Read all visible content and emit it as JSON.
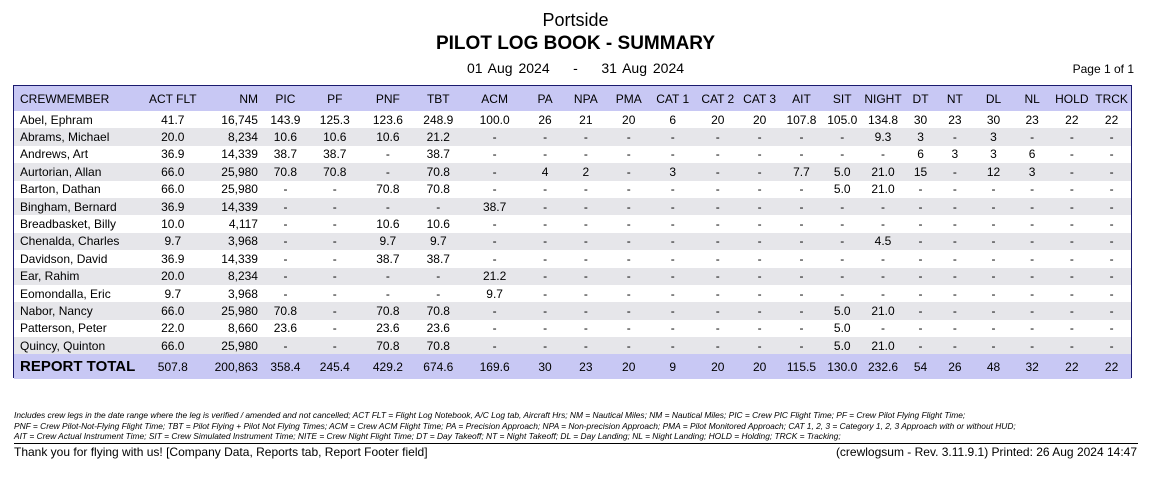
{
  "header": {
    "company": "Portside",
    "title": "PILOT LOG BOOK - SUMMARY",
    "date_from": "01 Aug 2024",
    "separator": "-",
    "date_to": "31 Aug 2024",
    "page": "Page 1 of 1"
  },
  "columns": [
    "CREWMEMBER",
    "ACT FLT",
    "NM",
    "PIC",
    "PF",
    "PNF",
    "TBT",
    "ACM",
    "PA",
    "NPA",
    "PMA",
    "CAT 1",
    "CAT 2",
    "CAT 3",
    "AIT",
    "SIT",
    "NIGHT",
    "DT",
    "NT",
    "DL",
    "NL",
    "HOLD",
    "TRCK"
  ],
  "rows": [
    [
      "Abel, Ephram",
      "41.7",
      "16,745",
      "143.9",
      "125.3",
      "123.6",
      "248.9",
      "100.0",
      "26",
      "21",
      "20",
      "6",
      "20",
      "20",
      "107.8",
      "105.0",
      "134.8",
      "30",
      "23",
      "30",
      "23",
      "22",
      "22"
    ],
    [
      "Abrams, Michael",
      "20.0",
      "8,234",
      "10.6",
      "10.6",
      "10.6",
      "21.2",
      "-",
      "-",
      "-",
      "-",
      "-",
      "-",
      "-",
      "-",
      "-",
      "9.3",
      "3",
      "-",
      "3",
      "-",
      "-",
      "-"
    ],
    [
      "Andrews, Art",
      "36.9",
      "14,339",
      "38.7",
      "38.7",
      "-",
      "38.7",
      "-",
      "-",
      "-",
      "-",
      "-",
      "-",
      "-",
      "-",
      "-",
      "-",
      "6",
      "3",
      "3",
      "6",
      "-",
      "-"
    ],
    [
      "Aurtorian, Allan",
      "66.0",
      "25,980",
      "70.8",
      "70.8",
      "-",
      "70.8",
      "-",
      "4",
      "2",
      "-",
      "3",
      "-",
      "-",
      "7.7",
      "5.0",
      "21.0",
      "15",
      "-",
      "12",
      "3",
      "-",
      "-"
    ],
    [
      "Barton, Dathan",
      "66.0",
      "25,980",
      "-",
      "-",
      "70.8",
      "70.8",
      "-",
      "-",
      "-",
      "-",
      "-",
      "-",
      "-",
      "-",
      "5.0",
      "21.0",
      "-",
      "-",
      "-",
      "-",
      "-",
      "-"
    ],
    [
      "Bingham, Bernard",
      "36.9",
      "14,339",
      "-",
      "-",
      "-",
      "-",
      "38.7",
      "-",
      "-",
      "-",
      "-",
      "-",
      "-",
      "-",
      "-",
      "-",
      "-",
      "-",
      "-",
      "-",
      "-",
      "-"
    ],
    [
      "Breadbasket, Billy",
      "10.0",
      "4,117",
      "-",
      "-",
      "10.6",
      "10.6",
      "-",
      "-",
      "-",
      "-",
      "-",
      "-",
      "-",
      "-",
      "-",
      "-",
      "-",
      "-",
      "-",
      "-",
      "-",
      "-"
    ],
    [
      "Chenalda, Charles",
      "9.7",
      "3,968",
      "-",
      "-",
      "9.7",
      "9.7",
      "-",
      "-",
      "-",
      "-",
      "-",
      "-",
      "-",
      "-",
      "-",
      "4.5",
      "-",
      "-",
      "-",
      "-",
      "-",
      "-"
    ],
    [
      "Davidson, David",
      "36.9",
      "14,339",
      "-",
      "-",
      "38.7",
      "38.7",
      "-",
      "-",
      "-",
      "-",
      "-",
      "-",
      "-",
      "-",
      "-",
      "-",
      "-",
      "-",
      "-",
      "-",
      "-",
      "-"
    ],
    [
      "Ear, Rahim",
      "20.0",
      "8,234",
      "-",
      "-",
      "-",
      "-",
      "21.2",
      "-",
      "-",
      "-",
      "-",
      "-",
      "-",
      "-",
      "-",
      "-",
      "-",
      "-",
      "-",
      "-",
      "-",
      "-"
    ],
    [
      "Eomondalla, Eric",
      "9.7",
      "3,968",
      "-",
      "-",
      "-",
      "-",
      "9.7",
      "-",
      "-",
      "-",
      "-",
      "-",
      "-",
      "-",
      "-",
      "-",
      "-",
      "-",
      "-",
      "-",
      "-",
      "-"
    ],
    [
      "Nabor, Nancy",
      "66.0",
      "25,980",
      "70.8",
      "-",
      "70.8",
      "70.8",
      "-",
      "-",
      "-",
      "-",
      "-",
      "-",
      "-",
      "-",
      "5.0",
      "21.0",
      "-",
      "-",
      "-",
      "-",
      "-",
      "-"
    ],
    [
      "Patterson, Peter",
      "22.0",
      "8,660",
      "23.6",
      "-",
      "23.6",
      "23.6",
      "-",
      "-",
      "-",
      "-",
      "-",
      "-",
      "-",
      "-",
      "5.0",
      "-",
      "-",
      "-",
      "-",
      "-",
      "-",
      "-"
    ],
    [
      "Quincy, Quinton",
      "66.0",
      "25,980",
      "-",
      "-",
      "70.8",
      "70.8",
      "-",
      "-",
      "-",
      "-",
      "-",
      "-",
      "-",
      "-",
      "5.0",
      "21.0",
      "-",
      "-",
      "-",
      "-",
      "-",
      "-"
    ]
  ],
  "total": [
    "REPORT TOTAL",
    "507.8",
    "200,863",
    "358.4",
    "245.4",
    "429.2",
    "674.6",
    "169.6",
    "30",
    "23",
    "20",
    "9",
    "20",
    "20",
    "115.5",
    "130.0",
    "232.6",
    "54",
    "26",
    "48",
    "32",
    "22",
    "22"
  ],
  "notes": [
    "Includes crew legs in the date range where the leg is verified / amended and not cancelled;  ACT FLT = Flight Log Notebook, A/C Log tab, Aircraft Hrs;  NM = Nautical Miles; NM = Nautical Miles;  PIC = Crew PIC Flight Time;  PF = Crew Pilot Flying Flight Time;",
    "PNF = Crew Pilot-Not-Flying Flight Time;  TBT = Pilot Flying + Pilot Not Flying Times;  ACM = Crew ACM Flight Time;  PA = Precision Approach;  NPA = Non-precision Approach;  PMA = Pilot Monitored Approach;  CAT 1, 2, 3 = Category 1, 2, 3 Approach with or without HUD;",
    "AIT =  Crew Actual Instrument Time;  SIT = Crew Simulated Instrument Time;  NITE = Crew Night Flight Time;  DT = Day Takeoff;  NT = Night Takeoff;  DL = Day Landing;  NL = Night Landing;  HOLD = Holding;  TRCK = Tracking;"
  ],
  "footer": {
    "left": "Thank you for flying with us! [Company Data, Reports tab, Report Footer field]",
    "right": "(crewlogsum -  Rev. 3.11.9.1) Printed: 26 Aug 2024 14:47"
  },
  "colors": {
    "header_band": "#c8c8f4",
    "alt_row": "#e6e6ea",
    "border": "#1a1a6e"
  }
}
